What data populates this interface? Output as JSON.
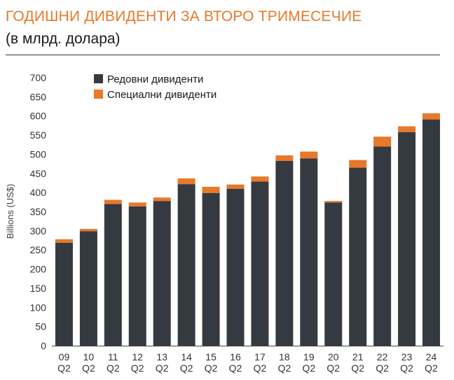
{
  "chart_data": {
    "type": "bar",
    "stacked": true,
    "title": "ГОДИШНИ ДИВИДЕНТИ ЗА ВТОРО ТРИМЕСЕЧИЕ",
    "subtitle": "(в млрд. долара)",
    "ylabel": "Billions (US$)",
    "ylim": [
      0,
      700
    ],
    "yticks": [
      0,
      50,
      100,
      150,
      200,
      250,
      300,
      350,
      400,
      450,
      500,
      550,
      600,
      650,
      700
    ],
    "categories": [
      [
        "09",
        "Q2"
      ],
      [
        "10",
        "Q2"
      ],
      [
        "11",
        "Q2"
      ],
      [
        "12",
        "Q2"
      ],
      [
        "13",
        "Q2"
      ],
      [
        "14",
        "Q2"
      ],
      [
        "15",
        "Q2"
      ],
      [
        "16",
        "Q2"
      ],
      [
        "17",
        "Q2"
      ],
      [
        "18",
        "Q2"
      ],
      [
        "19",
        "Q2"
      ],
      [
        "20",
        "Q2"
      ],
      [
        "21",
        "Q2"
      ],
      [
        "22",
        "Q2"
      ],
      [
        "23",
        "Q2"
      ],
      [
        "24",
        "Q2"
      ]
    ],
    "series": [
      {
        "name": "Редовни дивиденти",
        "color": "#353A40",
        "values": [
          269,
          299,
          370,
          364,
          378,
          422,
          399,
          410,
          429,
          483,
          489,
          374,
          465,
          520,
          558,
          591
        ]
      },
      {
        "name": "Специални дивиденти",
        "color": "#E8782A",
        "values": [
          9,
          6,
          11,
          10,
          9,
          15,
          16,
          11,
          13,
          14,
          18,
          4,
          20,
          26,
          15,
          16
        ]
      }
    ]
  }
}
